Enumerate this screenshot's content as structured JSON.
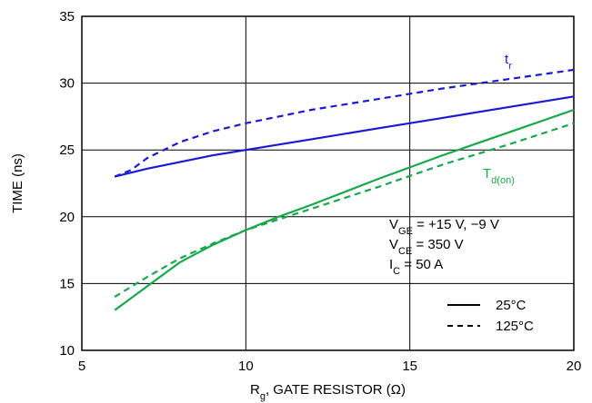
{
  "chart_data": {
    "type": "line",
    "xlabel": {
      "main": "R",
      "sub": "g",
      "rest": ", GATE RESISTOR (Ω)"
    },
    "ylabel": "TIME (ns)",
    "xlim": [
      5,
      20
    ],
    "ylim": [
      10,
      35
    ],
    "xticks": [
      "5",
      "10",
      "15",
      "20"
    ],
    "yticks": [
      "10",
      "15",
      "20",
      "25",
      "30",
      "35"
    ],
    "grid": true,
    "colors": {
      "tr": "#1a1ad6",
      "td": "#17a84a",
      "legend": "#000000"
    },
    "series": [
      {
        "label": "tr_25",
        "group": "tr",
        "style": "solid",
        "x": [
          6,
          6.5,
          7,
          8,
          9,
          10,
          12,
          14,
          16,
          18,
          20
        ],
        "y": [
          23.0,
          23.3,
          23.6,
          24.1,
          24.6,
          25.0,
          25.8,
          26.6,
          27.4,
          28.2,
          29.0
        ]
      },
      {
        "label": "tr_125",
        "group": "tr",
        "style": "dashed",
        "x": [
          6,
          6.5,
          7,
          8,
          9,
          10,
          12,
          14,
          16,
          18,
          20
        ],
        "y": [
          23.0,
          23.5,
          24.4,
          25.6,
          26.4,
          27.0,
          28.0,
          28.8,
          29.6,
          30.3,
          31.0
        ]
      },
      {
        "label": "td_25",
        "group": "td",
        "style": "solid",
        "x": [
          6,
          7,
          8,
          9,
          10,
          11,
          12,
          14,
          16,
          18,
          20
        ],
        "y": [
          13.0,
          14.8,
          16.6,
          17.9,
          19.0,
          20.0,
          20.9,
          22.8,
          24.6,
          26.3,
          28.0
        ]
      },
      {
        "label": "td_125",
        "group": "td",
        "style": "dashed",
        "x": [
          6,
          7,
          8,
          9,
          10,
          11,
          12,
          14,
          16,
          18,
          20
        ],
        "y": [
          14.0,
          15.5,
          16.9,
          18.0,
          19.0,
          19.8,
          20.6,
          22.2,
          23.9,
          25.4,
          27.0
        ]
      }
    ],
    "labels": {
      "tr": {
        "main": "t",
        "sub": "r"
      },
      "td": {
        "main": "T",
        "sub": "d(on)"
      }
    },
    "conditions": [
      {
        "main": "V",
        "sub": "GE",
        "rest": " = +15 V, −9 V"
      },
      {
        "main": "V",
        "sub": "CE",
        "rest": " = 350 V"
      },
      {
        "main": "I",
        "sub": "C",
        "rest": " = 50 A"
      }
    ],
    "legend": {
      "placement": "bottom-right",
      "items": [
        {
          "style": "solid",
          "text": "25°C"
        },
        {
          "style": "dashed",
          "text": "125°C"
        }
      ]
    }
  }
}
